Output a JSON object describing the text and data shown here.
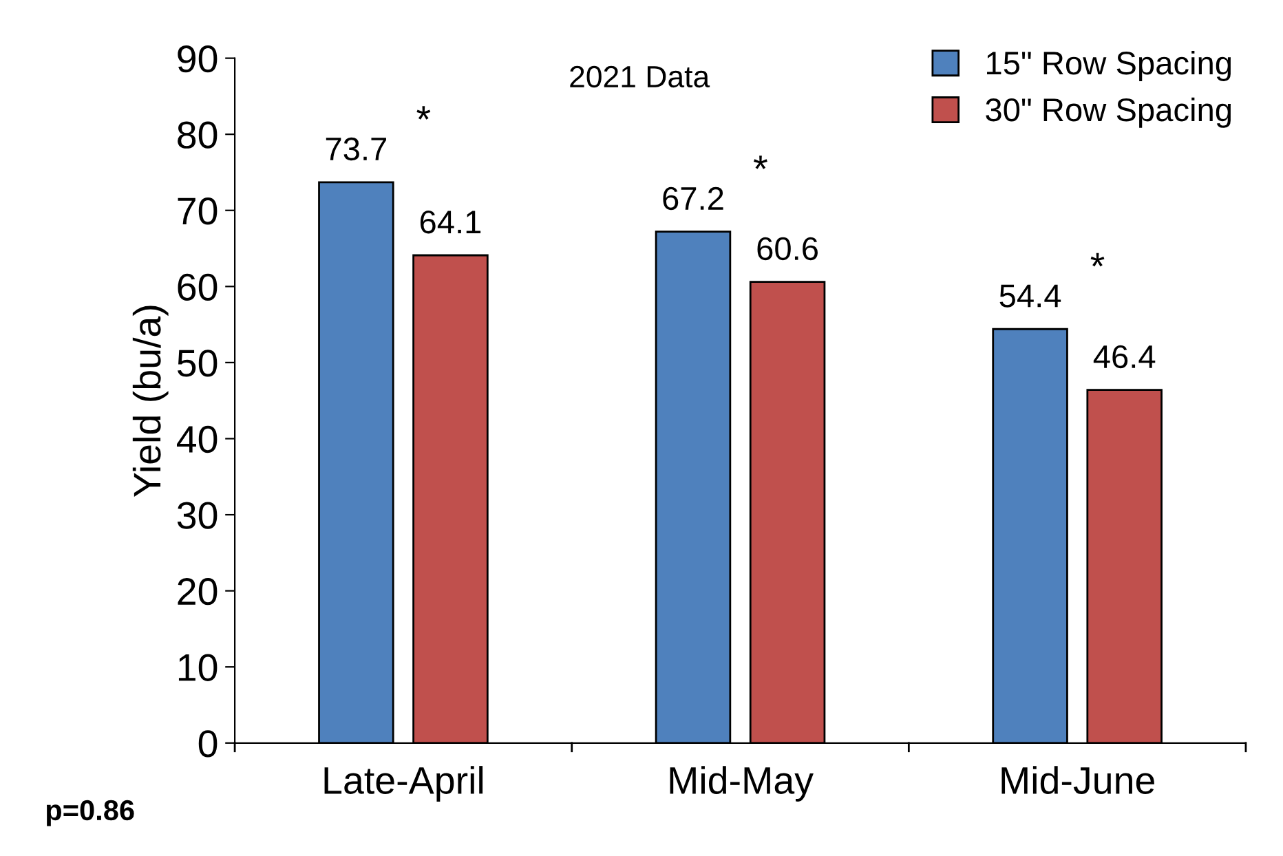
{
  "chart_data": {
    "type": "bar",
    "title": "2021 Data",
    "ylabel": "Yield (bu/a)",
    "categories": [
      "Late-April",
      "Mid-May",
      "Mid-June"
    ],
    "series": [
      {
        "name": "15\" Row Spacing",
        "color": "#4f81bd",
        "values": [
          73.7,
          67.2,
          54.4
        ]
      },
      {
        "name": "30\" Row Spacing",
        "color": "#c0504d",
        "values": [
          64.1,
          60.6,
          46.4
        ]
      }
    ],
    "ylim": [
      0,
      90
    ],
    "yticks": [
      0,
      10,
      20,
      30,
      40,
      50,
      60,
      70,
      80,
      90
    ],
    "data_labels": true,
    "legend": "top right",
    "grid": false,
    "annotations": [
      "*",
      "*",
      "*",
      "p=0.86"
    ]
  }
}
